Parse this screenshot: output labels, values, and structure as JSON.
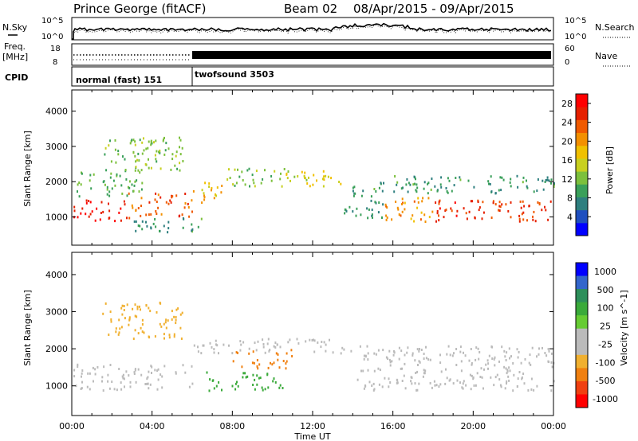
{
  "header": {
    "station": "Prince George (fitACF)",
    "beam": "Beam 02",
    "date_range": "08/Apr/2015 - 09/Apr/2015"
  },
  "noise_panel": {
    "left_label": "N.Sky",
    "right_label": "N.Search",
    "left_ticks": [
      "10^5",
      "10^0"
    ],
    "right_ticks": [
      "10^5",
      "10^0"
    ]
  },
  "freq_panel": {
    "left_label_1": "Freq.",
    "left_label_2": "[MHz]",
    "right_label": "Nave",
    "left_ticks": [
      "18",
      "8"
    ],
    "right_ticks": [
      "60",
      "0"
    ]
  },
  "cpid_panel": {
    "label": "CPID",
    "modes": [
      {
        "name": "normal (fast) 151",
        "start_hour": 0,
        "end_hour": 6
      },
      {
        "name": "twofsound 3503",
        "start_hour": 6,
        "end_hour": 24
      }
    ]
  },
  "colors": {
    "power_scale": [
      "#0000ff",
      "#1f4fbf",
      "#2e7f7f",
      "#3aa05a",
      "#7cc03c",
      "#c8d020",
      "#f0c000",
      "#f39000",
      "#f05a00",
      "#e62000",
      "#ff0000"
    ],
    "velocity_scale": [
      "#0000ff",
      "#3366cc",
      "#2d8f5a",
      "#3aaa3a",
      "#66cc33",
      "#bbbbbb",
      "#bbbbbb",
      "#f0b030",
      "#f08010",
      "#f04010",
      "#ff0000"
    ],
    "ground_scatter": "#bbbbbb"
  },
  "chart_data": [
    {
      "type": "heatmap",
      "title": "Power",
      "ylabel": "Slant Range [km]",
      "xlabel": "Time UT",
      "x_ticks": [
        "00:00",
        "04:00",
        "08:00",
        "12:00",
        "16:00",
        "20:00",
        "00:00"
      ],
      "y_ticks": [
        "1000",
        "2000",
        "3000",
        "4000"
      ],
      "ylim": [
        200,
        4600
      ],
      "xlim_hours": [
        0,
        24
      ],
      "colorbar": {
        "label": "Power [dB]",
        "ticks": [
          "4",
          "8",
          "12",
          "16",
          "20",
          "24",
          "28"
        ],
        "range": [
          0,
          30
        ]
      },
      "regions": [
        {
          "t0": 0.0,
          "t1": 2.5,
          "r0": 900,
          "r1": 1500,
          "value": 28
        },
        {
          "t0": 2.5,
          "t1": 6.0,
          "r0": 1000,
          "r1": 1700,
          "value": 24
        },
        {
          "t0": 6.0,
          "t1": 7.5,
          "r0": 1400,
          "r1": 2000,
          "value": 18
        },
        {
          "t0": 0.2,
          "t1": 3.5,
          "r0": 1600,
          "r1": 2300,
          "value": 10
        },
        {
          "t0": 1.5,
          "t1": 5.5,
          "r0": 2300,
          "r1": 3300,
          "value": 12
        },
        {
          "t0": 3.0,
          "t1": 6.5,
          "r0": 600,
          "r1": 1000,
          "value": 8
        },
        {
          "t0": 7.5,
          "t1": 10.5,
          "r0": 1900,
          "r1": 2400,
          "value": 12
        },
        {
          "t0": 10.5,
          "t1": 13.5,
          "r0": 1900,
          "r1": 2400,
          "value": 16
        },
        {
          "t0": 13.5,
          "t1": 15.5,
          "r0": 1000,
          "r1": 2000,
          "value": 8
        },
        {
          "t0": 15.5,
          "t1": 18.0,
          "r0": 900,
          "r1": 1600,
          "value": 20
        },
        {
          "t0": 18.0,
          "t1": 24.0,
          "r0": 900,
          "r1": 1500,
          "value": 26
        },
        {
          "t0": 16.0,
          "t1": 24.0,
          "r0": 1700,
          "r1": 2200,
          "value": 8
        }
      ]
    },
    {
      "type": "heatmap",
      "title": "Velocity",
      "ylabel": "Slant Range [km]",
      "xlabel": "Time UT",
      "x_ticks": [
        "00:00",
        "04:00",
        "08:00",
        "12:00",
        "16:00",
        "20:00",
        "00:00"
      ],
      "y_ticks": [
        "1000",
        "2000",
        "3000",
        "4000"
      ],
      "ylim": [
        200,
        4600
      ],
      "xlim_hours": [
        0,
        24
      ],
      "colorbar": {
        "label": "Velocity [m s^-1]",
        "ticks": [
          "1000",
          "500",
          "100",
          "25",
          "-25",
          "-100",
          "-500",
          "-1000"
        ]
      },
      "regions": [
        {
          "t0": 0.0,
          "t1": 6.0,
          "r0": 900,
          "r1": 1600,
          "value": 0
        },
        {
          "t0": 1.5,
          "t1": 5.5,
          "r0": 2300,
          "r1": 3300,
          "value": -100
        },
        {
          "t0": 8.0,
          "t1": 11.0,
          "r0": 1500,
          "r1": 2000,
          "value": -500
        },
        {
          "t0": 6.5,
          "t1": 10.5,
          "r0": 900,
          "r1": 1400,
          "value": 100
        },
        {
          "t0": 6.0,
          "t1": 14.0,
          "r0": 1900,
          "r1": 2300,
          "value": 0
        },
        {
          "t0": 14.0,
          "t1": 24.0,
          "r0": 900,
          "r1": 2100,
          "value": 0
        }
      ]
    }
  ]
}
